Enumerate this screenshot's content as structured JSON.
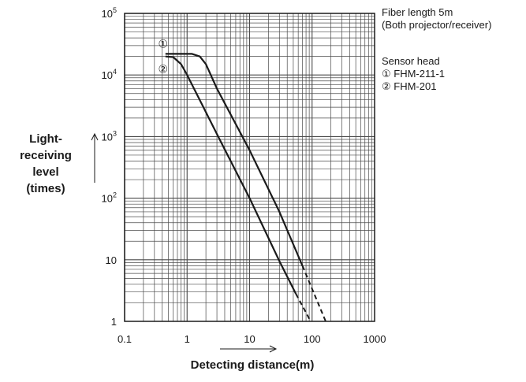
{
  "chart_data": {
    "type": "line",
    "xscale": "log",
    "yscale": "log",
    "xlim": [
      0.1,
      1000
    ],
    "ylim": [
      1,
      100000
    ],
    "grid": true,
    "xlabel": "Detecting distance(m)",
    "ylabel": [
      "Light-",
      "receiving",
      "level",
      "(times)"
    ],
    "x_ticks": [
      "0.1",
      "1",
      "10",
      "100",
      "1000"
    ],
    "y_ticks": [
      {
        "base": "10",
        "exp": "5"
      },
      {
        "base": "10",
        "exp": "4"
      },
      {
        "base": "10",
        "exp": "3"
      },
      {
        "base": "10",
        "exp": "2"
      },
      {
        "base": "10",
        "exp": ""
      },
      {
        "base": "1",
        "exp": ""
      }
    ],
    "series": [
      {
        "name": "①",
        "solid": [
          [
            0.45,
            22000
          ],
          [
            1.2,
            22000
          ],
          [
            1.6,
            20000
          ],
          [
            2.0,
            15000
          ],
          [
            3,
            6000
          ],
          [
            10,
            600
          ],
          [
            30,
            60
          ],
          [
            70,
            8
          ]
        ],
        "dashed": [
          [
            70,
            8
          ],
          [
            165,
            1
          ]
        ]
      },
      {
        "name": "②",
        "solid": [
          [
            0.45,
            20000
          ],
          [
            0.6,
            19500
          ],
          [
            0.8,
            15000
          ],
          [
            1.0,
            10000
          ],
          [
            3,
            1100
          ],
          [
            10,
            100
          ],
          [
            30,
            9.5
          ],
          [
            55,
            2.8
          ]
        ],
        "dashed": [
          [
            55,
            2.8
          ],
          [
            95,
            1
          ]
        ]
      }
    ]
  },
  "notes": {
    "fiber_length": "Fiber length 5m",
    "fiber_detail": "(Both projector/receiver)",
    "sensor_head": "Sensor head",
    "head1": "① FHM-211-1",
    "head2": "② FHM-201"
  },
  "colors": {
    "line": "#1a1a1a",
    "grid": "#4a4a4a",
    "frame": "#1a1a1a"
  }
}
